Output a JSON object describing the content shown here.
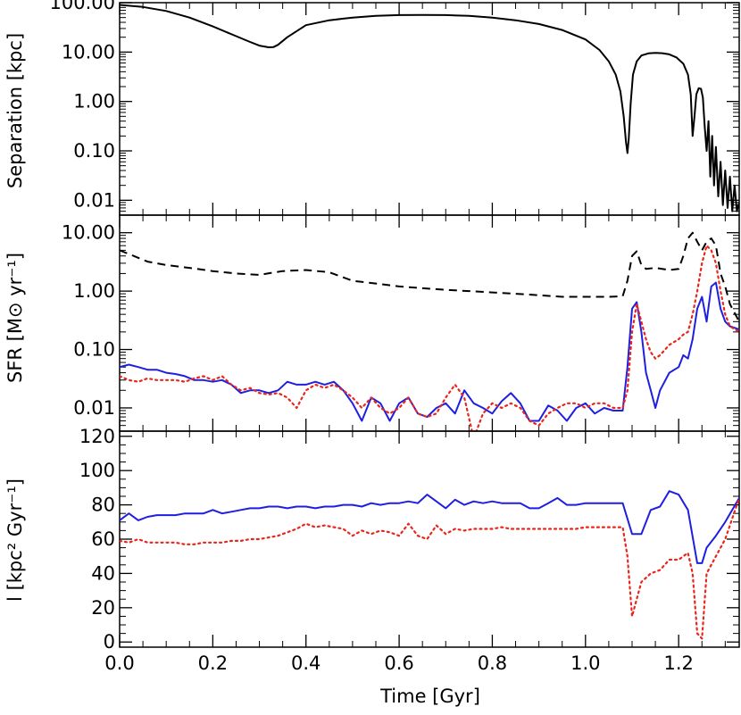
{
  "chart_data": [
    {
      "type": "line",
      "panel": "top",
      "ylabel": "Separation [kpc]",
      "yscale": "log",
      "ylim": [
        0.005,
        100
      ],
      "xlim": [
        0.0,
        1.33
      ],
      "ytick_labels": [
        "100.00",
        "10.00",
        "1.00",
        "0.10",
        "0.01"
      ],
      "ytick_values": [
        100,
        10,
        1,
        0.1,
        0.01
      ],
      "colors": {
        "separation": "#000000"
      },
      "series": [
        {
          "style": "solid",
          "x": [
            0.0,
            0.05,
            0.1,
            0.15,
            0.2,
            0.25,
            0.28,
            0.3,
            0.32,
            0.33,
            0.34,
            0.36,
            0.4,
            0.45,
            0.5,
            0.55,
            0.6,
            0.65,
            0.7,
            0.75,
            0.8,
            0.85,
            0.9,
            0.95,
            1.0,
            1.03,
            1.05,
            1.065,
            1.075,
            1.082,
            1.087,
            1.09,
            1.093,
            1.097,
            1.102,
            1.11,
            1.12,
            1.135,
            1.15,
            1.165,
            1.18,
            1.195,
            1.21,
            1.22,
            1.226,
            1.23,
            1.234,
            1.238,
            1.243,
            1.248,
            1.252,
            1.256,
            1.26,
            1.264,
            1.268,
            1.272,
            1.276,
            1.28,
            1.285,
            1.29,
            1.295,
            1.3,
            1.305,
            1.31,
            1.315,
            1.32,
            1.325,
            1.33
          ],
          "y": [
            90,
            82,
            68,
            50,
            33,
            21,
            16,
            13.5,
            12.5,
            12.6,
            14,
            20,
            35,
            44,
            50,
            54,
            56,
            56.5,
            56,
            54,
            50,
            44,
            37,
            28,
            18,
            11,
            6.5,
            3.5,
            1.6,
            0.5,
            0.15,
            0.09,
            0.18,
            0.9,
            3.5,
            6.5,
            8.5,
            9.4,
            9.6,
            9.5,
            9,
            7.8,
            5.8,
            3.5,
            1.4,
            0.2,
            0.5,
            1.4,
            1.85,
            1.8,
            1.2,
            0.3,
            0.1,
            0.4,
            0.03,
            0.2,
            0.02,
            0.12,
            0.012,
            0.06,
            0.008,
            0.04,
            0.007,
            0.03,
            0.006,
            0.02,
            0.006,
            0.009
          ]
        }
      ]
    },
    {
      "type": "line",
      "panel": "middle",
      "ylabel": "SFR [M⊙ yr⁻¹]",
      "yscale": "log",
      "ylim": [
        0.004,
        20
      ],
      "xlim": [
        0.0,
        1.33
      ],
      "ytick_labels": [
        "10.00",
        "1.00",
        "0.10",
        "0.01"
      ],
      "ytick_values": [
        10,
        1,
        0.1,
        0.01
      ],
      "colors": {
        "dashed": "#000000",
        "solid": "#1f1fe0",
        "dotted": "#e8261c"
      },
      "series": [
        {
          "style": "dashed",
          "x": [
            0.0,
            0.03,
            0.06,
            0.1,
            0.15,
            0.2,
            0.25,
            0.3,
            0.35,
            0.4,
            0.45,
            0.5,
            0.55,
            0.6,
            0.65,
            0.7,
            0.75,
            0.8,
            0.85,
            0.9,
            0.95,
            1.0,
            1.05,
            1.08,
            1.09,
            1.1,
            1.11,
            1.12,
            1.13,
            1.15,
            1.18,
            1.2,
            1.21,
            1.22,
            1.23,
            1.24,
            1.25,
            1.26,
            1.27,
            1.28,
            1.29,
            1.3,
            1.31,
            1.33
          ],
          "y": [
            5,
            4,
            3.2,
            2.8,
            2.5,
            2.2,
            2.0,
            1.9,
            2.2,
            2.3,
            2.1,
            1.5,
            1.35,
            1.2,
            1.12,
            1.05,
            1.0,
            0.95,
            0.9,
            0.85,
            0.8,
            0.8,
            0.8,
            0.82,
            1.5,
            4.0,
            4.8,
            2.8,
            2.4,
            2.5,
            2.3,
            2.4,
            4.0,
            8.0,
            10.0,
            7.0,
            5.0,
            7.0,
            8.0,
            6.0,
            2.0,
            1.2,
            0.6,
            0.3
          ]
        },
        {
          "style": "solid",
          "x": [
            0.0,
            0.02,
            0.04,
            0.06,
            0.08,
            0.1,
            0.12,
            0.14,
            0.16,
            0.18,
            0.2,
            0.22,
            0.24,
            0.26,
            0.28,
            0.3,
            0.32,
            0.34,
            0.36,
            0.38,
            0.4,
            0.42,
            0.44,
            0.46,
            0.48,
            0.5,
            0.52,
            0.54,
            0.56,
            0.58,
            0.6,
            0.62,
            0.64,
            0.66,
            0.68,
            0.7,
            0.72,
            0.74,
            0.76,
            0.78,
            0.8,
            0.82,
            0.84,
            0.86,
            0.88,
            0.9,
            0.92,
            0.94,
            0.96,
            0.98,
            1.0,
            1.02,
            1.04,
            1.06,
            1.08,
            1.09,
            1.1,
            1.11,
            1.12,
            1.13,
            1.14,
            1.15,
            1.16,
            1.18,
            1.2,
            1.21,
            1.22,
            1.23,
            1.24,
            1.25,
            1.26,
            1.27,
            1.28,
            1.29,
            1.3,
            1.31,
            1.33
          ],
          "y": [
            0.05,
            0.055,
            0.05,
            0.045,
            0.045,
            0.04,
            0.038,
            0.035,
            0.03,
            0.03,
            0.028,
            0.03,
            0.025,
            0.018,
            0.02,
            0.02,
            0.018,
            0.02,
            0.028,
            0.025,
            0.025,
            0.028,
            0.025,
            0.028,
            0.02,
            0.012,
            0.006,
            0.015,
            0.012,
            0.006,
            0.012,
            0.015,
            0.008,
            0.007,
            0.01,
            0.012,
            0.008,
            0.02,
            0.012,
            0.01,
            0.008,
            0.013,
            0.018,
            0.012,
            0.006,
            0.006,
            0.011,
            0.009,
            0.006,
            0.01,
            0.012,
            0.008,
            0.01,
            0.009,
            0.009,
            0.05,
            0.5,
            0.65,
            0.2,
            0.04,
            0.02,
            0.01,
            0.02,
            0.04,
            0.05,
            0.08,
            0.07,
            0.15,
            0.5,
            0.8,
            0.3,
            1.2,
            1.4,
            0.5,
            0.3,
            0.25,
            0.22
          ]
        },
        {
          "style": "dotted",
          "x": [
            0.0,
            0.02,
            0.04,
            0.06,
            0.08,
            0.1,
            0.12,
            0.14,
            0.16,
            0.18,
            0.2,
            0.22,
            0.24,
            0.26,
            0.28,
            0.3,
            0.32,
            0.34,
            0.36,
            0.38,
            0.4,
            0.42,
            0.44,
            0.46,
            0.48,
            0.5,
            0.52,
            0.54,
            0.56,
            0.58,
            0.6,
            0.62,
            0.64,
            0.66,
            0.68,
            0.7,
            0.72,
            0.74,
            0.76,
            0.78,
            0.8,
            0.82,
            0.84,
            0.86,
            0.88,
            0.9,
            0.92,
            0.94,
            0.96,
            0.98,
            1.0,
            1.02,
            1.04,
            1.06,
            1.08,
            1.09,
            1.1,
            1.11,
            1.12,
            1.13,
            1.14,
            1.15,
            1.16,
            1.18,
            1.2,
            1.21,
            1.22,
            1.23,
            1.24,
            1.25,
            1.26,
            1.27,
            1.28,
            1.29,
            1.3,
            1.31,
            1.33
          ],
          "y": [
            0.035,
            0.03,
            0.028,
            0.032,
            0.03,
            0.03,
            0.03,
            0.028,
            0.032,
            0.035,
            0.03,
            0.035,
            0.025,
            0.02,
            0.022,
            0.018,
            0.017,
            0.018,
            0.015,
            0.01,
            0.02,
            0.025,
            0.022,
            0.025,
            0.02,
            0.015,
            0.01,
            0.015,
            0.01,
            0.008,
            0.01,
            0.015,
            0.008,
            0.007,
            0.008,
            0.015,
            0.025,
            0.015,
            0.003,
            0.008,
            0.012,
            0.01,
            0.012,
            0.01,
            0.006,
            0.005,
            0.008,
            0.01,
            0.012,
            0.012,
            0.01,
            0.012,
            0.012,
            0.01,
            0.01,
            0.02,
            0.2,
            0.6,
            0.3,
            0.15,
            0.09,
            0.07,
            0.08,
            0.12,
            0.15,
            0.18,
            0.2,
            0.4,
            1.0,
            3.0,
            6.0,
            5.0,
            3.0,
            1.0,
            0.4,
            0.25,
            0.2
          ]
        }
      ]
    },
    {
      "type": "line",
      "panel": "bottom",
      "ylabel": "l [kpc² Gyr⁻¹]",
      "xlabel": "Time [Gyr]",
      "ylim": [
        -3,
        123
      ],
      "xlim": [
        0.0,
        1.33
      ],
      "ytick_labels": [
        "0",
        "20",
        "40",
        "60",
        "80",
        "100",
        "120"
      ],
      "ytick_values": [
        0,
        20,
        40,
        60,
        80,
        100,
        120
      ],
      "xtick_labels": [
        "0.0",
        "0.2",
        "0.4",
        "0.6",
        "0.8",
        "1.0",
        "1.2"
      ],
      "xtick_values": [
        0.0,
        0.2,
        0.4,
        0.6,
        0.8,
        1.0,
        1.2
      ],
      "colors": {
        "solid": "#1f1fe0",
        "dotted": "#e8261c"
      },
      "series": [
        {
          "style": "solid",
          "x": [
            0.0,
            0.02,
            0.04,
            0.06,
            0.08,
            0.1,
            0.12,
            0.14,
            0.16,
            0.18,
            0.2,
            0.22,
            0.24,
            0.26,
            0.28,
            0.3,
            0.32,
            0.34,
            0.36,
            0.38,
            0.4,
            0.42,
            0.44,
            0.46,
            0.48,
            0.5,
            0.52,
            0.54,
            0.56,
            0.58,
            0.6,
            0.62,
            0.64,
            0.66,
            0.68,
            0.7,
            0.72,
            0.74,
            0.76,
            0.78,
            0.8,
            0.82,
            0.84,
            0.86,
            0.88,
            0.9,
            0.92,
            0.94,
            0.96,
            0.98,
            1.0,
            1.02,
            1.04,
            1.06,
            1.08,
            1.1,
            1.12,
            1.14,
            1.16,
            1.18,
            1.2,
            1.22,
            1.24,
            1.25,
            1.26,
            1.28,
            1.3,
            1.33
          ],
          "y": [
            71,
            75,
            71,
            73,
            74,
            74,
            74,
            75,
            75,
            75,
            77,
            75,
            76,
            77,
            78,
            78,
            79,
            79,
            78,
            79,
            79,
            78,
            79,
            79,
            80,
            80,
            79,
            81,
            80,
            81,
            81,
            82,
            81,
            86,
            82,
            78,
            83,
            80,
            82,
            81,
            82,
            81,
            81,
            81,
            78,
            78,
            81,
            84,
            80,
            80,
            81,
            81,
            81,
            81,
            81,
            63,
            63,
            77,
            79,
            88,
            86,
            77,
            46,
            46,
            55,
            62,
            70,
            84
          ]
        },
        {
          "style": "dotted",
          "x": [
            0.0,
            0.02,
            0.04,
            0.06,
            0.08,
            0.1,
            0.12,
            0.14,
            0.16,
            0.18,
            0.2,
            0.22,
            0.24,
            0.26,
            0.28,
            0.3,
            0.32,
            0.34,
            0.36,
            0.38,
            0.4,
            0.42,
            0.44,
            0.46,
            0.48,
            0.5,
            0.52,
            0.54,
            0.56,
            0.58,
            0.6,
            0.62,
            0.64,
            0.66,
            0.68,
            0.7,
            0.72,
            0.74,
            0.76,
            0.78,
            0.8,
            0.82,
            0.84,
            0.86,
            0.88,
            0.9,
            0.92,
            0.94,
            0.96,
            0.98,
            1.0,
            1.02,
            1.04,
            1.06,
            1.08,
            1.09,
            1.1,
            1.11,
            1.12,
            1.14,
            1.16,
            1.18,
            1.2,
            1.22,
            1.23,
            1.24,
            1.25,
            1.26,
            1.28,
            1.3,
            1.33
          ],
          "y": [
            59,
            58,
            60,
            58,
            58,
            58,
            58,
            57,
            57,
            58,
            58,
            58,
            59,
            59,
            60,
            60,
            61,
            62,
            64,
            66,
            69,
            67,
            68,
            67,
            66,
            62,
            65,
            63,
            65,
            64,
            62,
            69,
            62,
            60,
            68,
            63,
            66,
            65,
            66,
            66,
            66,
            67,
            66,
            66,
            66,
            66,
            66,
            66,
            66,
            66,
            67,
            67,
            67,
            67,
            67,
            50,
            15,
            25,
            35,
            40,
            42,
            48,
            48,
            52,
            40,
            5,
            2,
            40,
            50,
            60,
            84
          ]
        }
      ]
    }
  ]
}
